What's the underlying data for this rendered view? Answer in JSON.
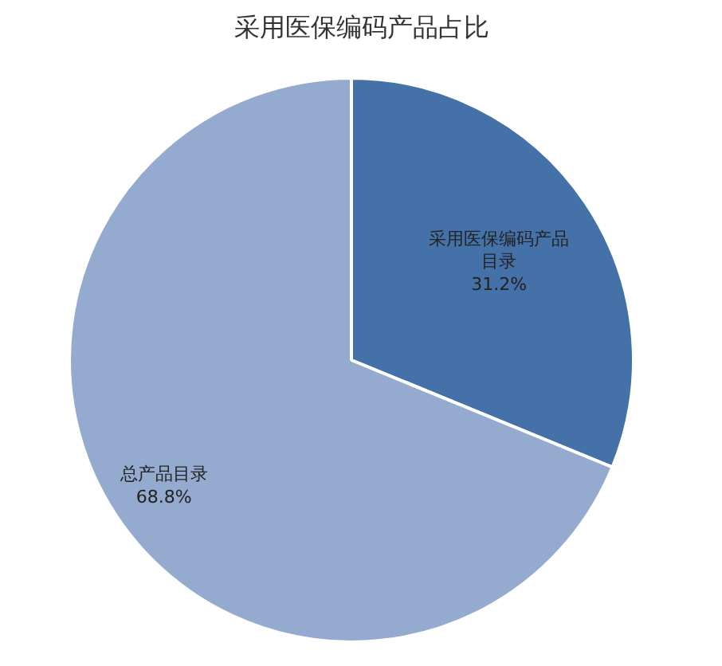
{
  "chart_data": {
    "type": "pie",
    "title": "采用医保编码产品占比",
    "categories": [
      "采用医保编码产品目录",
      "总产品目录"
    ],
    "values": [
      31.2,
      68.8
    ],
    "colors": [
      "#4571a9",
      "#94abcf"
    ],
    "value_labels": [
      "31.2%",
      "68.8%"
    ],
    "legend": false
  }
}
